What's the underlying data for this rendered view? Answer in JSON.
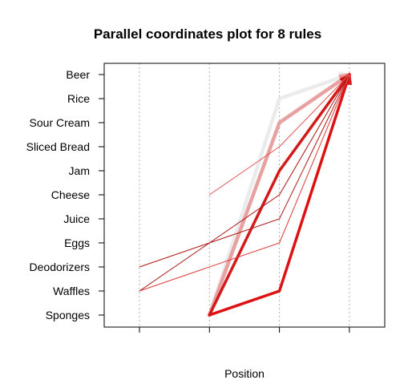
{
  "chart_data": {
    "type": "parallel-coordinates",
    "title": "Parallel coordinates plot for 8 rules",
    "xlabel": "Position",
    "ylabel": "",
    "items": [
      "Sponges",
      "Waffles",
      "Deodorizers",
      "Eggs",
      "Juice",
      "Cheese",
      "Jam",
      "Sliced Bread",
      "Sour Cream",
      "Rice",
      "Beer"
    ],
    "positions": [
      1,
      2,
      3,
      4
    ],
    "grid": true,
    "rules": [
      {
        "path": [
          {
            "pos": 2,
            "item": "Sponges"
          },
          {
            "pos": 3,
            "item": "Rice"
          },
          {
            "pos": 4,
            "item": "Beer"
          }
        ],
        "color": "#EBEBEB",
        "width": 4.5
      },
      {
        "path": [
          {
            "pos": 2,
            "item": "Sponges"
          },
          {
            "pos": 3,
            "item": "Sour Cream"
          },
          {
            "pos": 4,
            "item": "Beer"
          }
        ],
        "color": "#E8A0A0",
        "width": 4.5
      },
      {
        "path": [
          {
            "pos": 2,
            "item": "Sponges"
          },
          {
            "pos": 3,
            "item": "Jam"
          },
          {
            "pos": 4,
            "item": "Beer"
          }
        ],
        "color": "#D21A1A",
        "width": 3.5
      },
      {
        "path": [
          {
            "pos": 2,
            "item": "Sponges"
          },
          {
            "pos": 3,
            "item": "Waffles"
          },
          {
            "pos": 4,
            "item": "Beer"
          }
        ],
        "color": "#DD1111",
        "width": 3.5
      },
      {
        "path": [
          {
            "pos": 1,
            "item": "Waffles"
          },
          {
            "pos": 2,
            "item": "Eggs"
          },
          {
            "pos": 3,
            "item": "Cheese"
          },
          {
            "pos": 4,
            "item": "Beer"
          }
        ],
        "color": "#AA1111",
        "width": 1
      },
      {
        "path": [
          {
            "pos": 1,
            "item": "Deodorizers"
          },
          {
            "pos": 2,
            "item": "Eggs"
          },
          {
            "pos": 3,
            "item": "Juice"
          },
          {
            "pos": 4,
            "item": "Beer"
          }
        ],
        "color": "#B01818",
        "width": 1
      },
      {
        "path": [
          {
            "pos": 1,
            "item": "Waffles"
          },
          {
            "pos": 3,
            "item": "Eggs"
          },
          {
            "pos": 4,
            "item": "Beer"
          }
        ],
        "color": "#E03838",
        "width": 1
      },
      {
        "path": [
          {
            "pos": 2,
            "item": "Cheese"
          },
          {
            "pos": 3,
            "item": "Sliced Bread"
          },
          {
            "pos": 4,
            "item": "Beer"
          }
        ],
        "color": "#E05050",
        "width": 1
      }
    ]
  }
}
